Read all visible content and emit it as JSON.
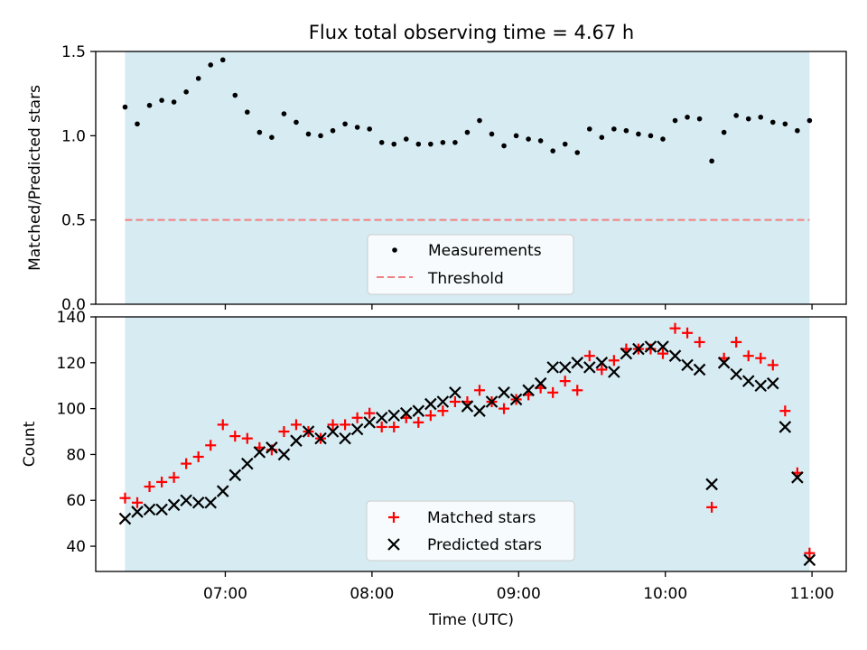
{
  "title": "Flux total observing time = 4.67 h",
  "colors": {
    "shade": "#add8e6",
    "measurement": "#000000",
    "threshold": "#f08080",
    "matched": "#ff0000",
    "predicted": "#000000"
  },
  "chart_data": [
    {
      "type": "scatter",
      "ylabel": "Matched/Predicted stars",
      "xlabel": "",
      "ylim": [
        0,
        1.5
      ],
      "yticks": [
        "0.0",
        "0.5",
        "1.0",
        "1.5"
      ],
      "legend_position": "lower center",
      "threshold": {
        "name": "Threshold",
        "value": 0.5
      },
      "series": [
        {
          "name": "Measurements",
          "x": [
            "06:19",
            "06:24",
            "06:29",
            "06:34",
            "06:39",
            "06:44",
            "06:49",
            "06:54",
            "06:59",
            "07:04",
            "07:09",
            "07:14",
            "07:19",
            "07:24",
            "07:29",
            "07:34",
            "07:39",
            "07:44",
            "07:49",
            "07:54",
            "07:59",
            "08:04",
            "08:09",
            "08:14",
            "08:19",
            "08:24",
            "08:29",
            "08:34",
            "08:39",
            "08:44",
            "08:49",
            "08:54",
            "08:59",
            "09:04",
            "09:09",
            "09:14",
            "09:19",
            "09:24",
            "09:29",
            "09:34",
            "09:39",
            "09:44",
            "09:49",
            "09:54",
            "09:59",
            "10:04",
            "10:09",
            "10:14",
            "10:19",
            "10:24",
            "10:29",
            "10:34",
            "10:39",
            "10:44",
            "10:49",
            "10:54",
            "10:59"
          ],
          "y": [
            1.17,
            1.07,
            1.18,
            1.21,
            1.2,
            1.26,
            1.34,
            1.42,
            1.45,
            1.24,
            1.14,
            1.02,
            0.99,
            1.13,
            1.08,
            1.01,
            1.0,
            1.03,
            1.07,
            1.05,
            1.04,
            0.96,
            0.95,
            0.98,
            0.95,
            0.95,
            0.96,
            0.96,
            1.02,
            1.09,
            1.01,
            0.94,
            1.0,
            0.98,
            0.97,
            0.91,
            0.95,
            0.9,
            1.04,
            0.99,
            1.04,
            1.03,
            1.01,
            1.0,
            0.98,
            1.09,
            1.11,
            1.1,
            0.85,
            1.02,
            1.12,
            1.1,
            1.11,
            1.08,
            1.07,
            1.03,
            1.09
          ]
        }
      ]
    },
    {
      "type": "scatter",
      "xlabel": "Time (UTC)",
      "ylabel": "Count",
      "ylim": [
        29,
        140
      ],
      "yticks": [
        "40",
        "60",
        "80",
        "100",
        "120",
        "140"
      ],
      "xticks": [
        "07:00",
        "08:00",
        "09:00",
        "10:00",
        "11:00"
      ],
      "xrange": [
        "06:07",
        "11:14"
      ],
      "shaded_span": [
        "06:19",
        "10:59"
      ],
      "legend_position": "lower center",
      "series": [
        {
          "name": "Matched stars",
          "x": [
            "06:19",
            "06:24",
            "06:29",
            "06:34",
            "06:39",
            "06:44",
            "06:49",
            "06:54",
            "06:59",
            "07:04",
            "07:09",
            "07:14",
            "07:19",
            "07:24",
            "07:29",
            "07:34",
            "07:39",
            "07:44",
            "07:49",
            "07:54",
            "07:59",
            "08:04",
            "08:09",
            "08:14",
            "08:19",
            "08:24",
            "08:29",
            "08:34",
            "08:39",
            "08:44",
            "08:49",
            "08:54",
            "08:59",
            "09:04",
            "09:09",
            "09:14",
            "09:19",
            "09:24",
            "09:29",
            "09:34",
            "09:39",
            "09:44",
            "09:49",
            "09:54",
            "09:59",
            "10:04",
            "10:09",
            "10:14",
            "10:19",
            "10:24",
            "10:29",
            "10:34",
            "10:39",
            "10:44",
            "10:49",
            "10:54",
            "10:59"
          ],
          "y": [
            61,
            59,
            66,
            68,
            70,
            76,
            79,
            84,
            93,
            88,
            87,
            83,
            82,
            90,
            93,
            90,
            87,
            93,
            93,
            96,
            98,
            92,
            92,
            96,
            94,
            97,
            99,
            103,
            103,
            108,
            103,
            100,
            104,
            106,
            109,
            107,
            112,
            108,
            123,
            117,
            121,
            126,
            126,
            126,
            124,
            135,
            133,
            129,
            57,
            122,
            129,
            123,
            122,
            119,
            99,
            72,
            37
          ]
        },
        {
          "name": "Predicted stars",
          "x": [
            "06:19",
            "06:24",
            "06:29",
            "06:34",
            "06:39",
            "06:44",
            "06:49",
            "06:54",
            "06:59",
            "07:04",
            "07:09",
            "07:14",
            "07:19",
            "07:24",
            "07:29",
            "07:34",
            "07:39",
            "07:44",
            "07:49",
            "07:54",
            "07:59",
            "08:04",
            "08:09",
            "08:14",
            "08:19",
            "08:24",
            "08:29",
            "08:34",
            "08:39",
            "08:44",
            "08:49",
            "08:54",
            "08:59",
            "09:04",
            "09:09",
            "09:14",
            "09:19",
            "09:24",
            "09:29",
            "09:34",
            "09:39",
            "09:44",
            "09:49",
            "09:54",
            "09:59",
            "10:04",
            "10:09",
            "10:14",
            "10:19",
            "10:24",
            "10:29",
            "10:34",
            "10:39",
            "10:44",
            "10:49",
            "10:54",
            "10:59"
          ],
          "y": [
            52,
            55,
            56,
            56,
            58,
            60,
            59,
            59,
            64,
            71,
            76,
            81,
            83,
            80,
            86,
            90,
            87,
            90,
            87,
            91,
            94,
            96,
            97,
            98,
            99,
            102,
            103,
            107,
            101,
            99,
            103,
            107,
            104,
            108,
            111,
            118,
            118,
            120,
            118,
            120,
            116,
            124,
            126,
            127,
            127,
            123,
            119,
            117,
            67,
            120,
            115,
            112,
            110,
            111,
            92,
            70,
            34
          ]
        }
      ]
    }
  ]
}
